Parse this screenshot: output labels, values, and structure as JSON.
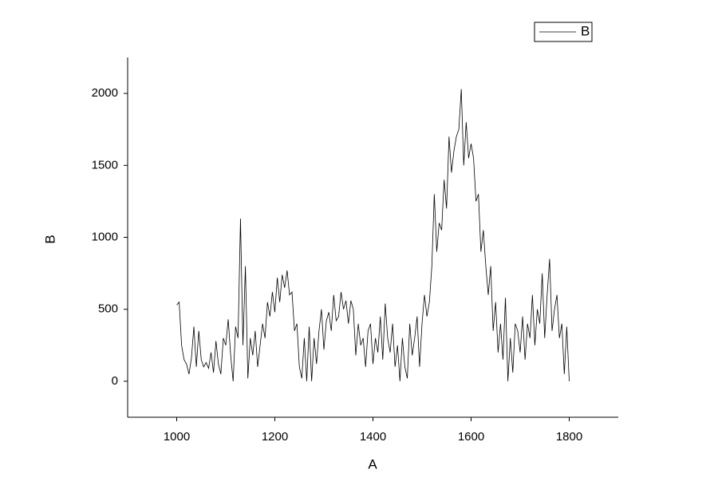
{
  "chart_data": {
    "type": "line",
    "xlabel": "A",
    "ylabel": "B",
    "x": [
      1000,
      1005,
      1010,
      1015,
      1020,
      1025,
      1030,
      1035,
      1040,
      1045,
      1050,
      1055,
      1060,
      1065,
      1070,
      1075,
      1080,
      1085,
      1090,
      1095,
      1100,
      1105,
      1110,
      1115,
      1120,
      1125,
      1130,
      1135,
      1140,
      1145,
      1150,
      1155,
      1160,
      1165,
      1170,
      1175,
      1180,
      1185,
      1190,
      1195,
      1200,
      1205,
      1210,
      1215,
      1220,
      1225,
      1230,
      1235,
      1240,
      1245,
      1250,
      1255,
      1260,
      1265,
      1270,
      1275,
      1280,
      1285,
      1290,
      1295,
      1300,
      1305,
      1310,
      1315,
      1320,
      1325,
      1330,
      1335,
      1340,
      1345,
      1350,
      1355,
      1360,
      1365,
      1370,
      1375,
      1380,
      1385,
      1390,
      1395,
      1400,
      1405,
      1410,
      1415,
      1420,
      1425,
      1430,
      1435,
      1440,
      1445,
      1450,
      1455,
      1460,
      1465,
      1470,
      1475,
      1480,
      1485,
      1490,
      1495,
      1500,
      1505,
      1510,
      1515,
      1520,
      1525,
      1530,
      1535,
      1540,
      1545,
      1550,
      1555,
      1560,
      1565,
      1570,
      1575,
      1580,
      1585,
      1590,
      1595,
      1600,
      1605,
      1610,
      1615,
      1620,
      1625,
      1630,
      1635,
      1640,
      1645,
      1650,
      1655,
      1660,
      1665,
      1670,
      1675,
      1680,
      1685,
      1690,
      1695,
      1700,
      1705,
      1710,
      1715,
      1720,
      1725,
      1730,
      1735,
      1740,
      1745,
      1750,
      1755,
      1760,
      1765,
      1770,
      1775,
      1780,
      1785,
      1790,
      1795,
      1800
    ],
    "series": [
      {
        "name": "B",
        "color": "#000000",
        "values": [
          530,
          550,
          250,
          150,
          120,
          50,
          160,
          380,
          100,
          350,
          150,
          100,
          130,
          90,
          200,
          60,
          280,
          120,
          50,
          300,
          250,
          430,
          180,
          0,
          380,
          300,
          1130,
          250,
          800,
          20,
          300,
          180,
          350,
          100,
          250,
          400,
          300,
          550,
          450,
          620,
          480,
          720,
          550,
          740,
          650,
          770,
          600,
          620,
          350,
          400,
          100,
          20,
          300,
          0,
          380,
          0,
          300,
          120,
          350,
          500,
          220,
          420,
          480,
          350,
          600,
          420,
          450,
          620,
          500,
          560,
          400,
          560,
          500,
          180,
          400,
          250,
          300,
          100,
          350,
          400,
          120,
          300,
          200,
          450,
          150,
          540,
          300,
          200,
          400,
          100,
          250,
          0,
          300,
          100,
          20,
          400,
          180,
          300,
          450,
          100,
          400,
          600,
          450,
          550,
          800,
          1300,
          900,
          1100,
          1050,
          1400,
          1200,
          1700,
          1450,
          1600,
          1700,
          1750,
          2030,
          1500,
          1800,
          1550,
          1650,
          1550,
          1250,
          1300,
          900,
          1050,
          800,
          600,
          800,
          350,
          550,
          200,
          400,
          150,
          580,
          0,
          300,
          60,
          400,
          350,
          200,
          450,
          150,
          400,
          300,
          600,
          250,
          500,
          400,
          750,
          300,
          600,
          850,
          350,
          500,
          600,
          300,
          400,
          50,
          380,
          0
        ]
      }
    ],
    "xlim": [
      900,
      1900
    ],
    "xticks": [
      1000,
      1200,
      1400,
      1600,
      1800
    ],
    "ylim": [
      -250,
      2250
    ],
    "yticks": [
      0,
      500,
      1000,
      1500,
      2000
    ],
    "legend": "top-right"
  }
}
